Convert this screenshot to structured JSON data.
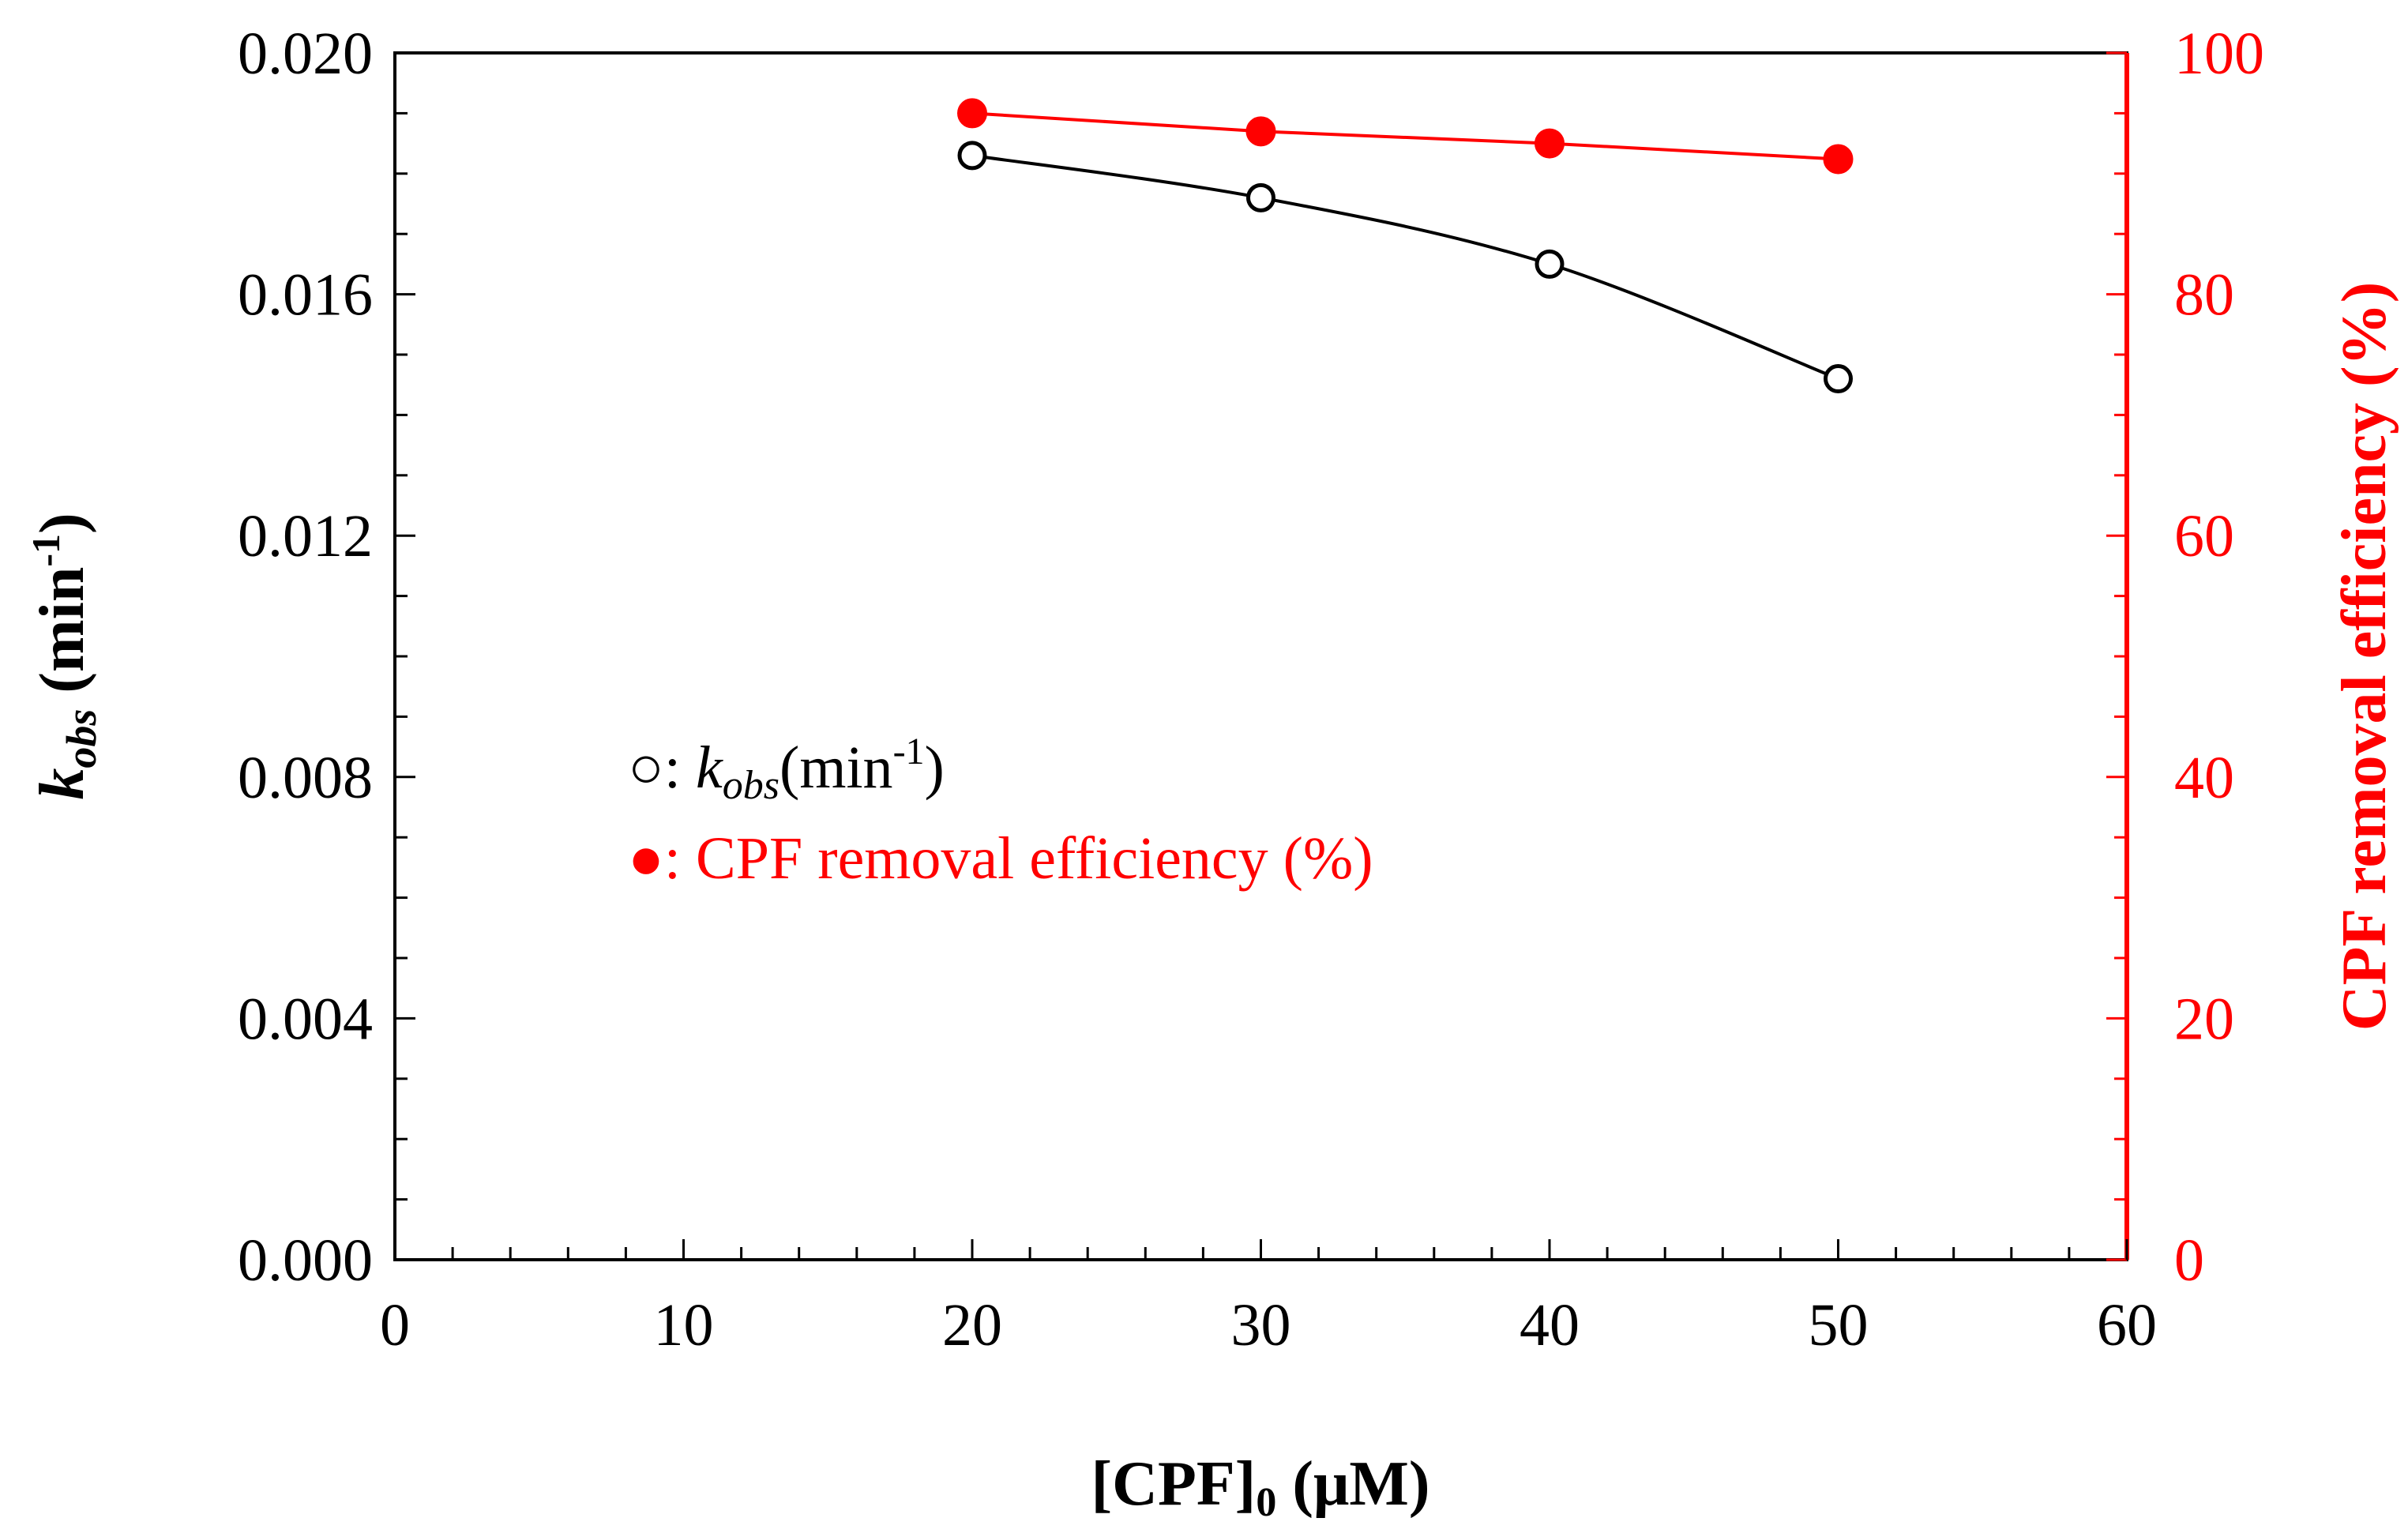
{
  "chart_data": {
    "type": "line",
    "x": [
      20,
      30,
      40,
      50
    ],
    "xlim": [
      0,
      60
    ],
    "xticks": [
      "0",
      "10",
      "20",
      "30",
      "40",
      "50",
      "60"
    ],
    "xlabel": {
      "main": "[CPF]",
      "sub": "0",
      "unit": " (μM)"
    },
    "ylim_left": [
      0,
      0.02
    ],
    "yticks_left": [
      "0.000",
      "0.004",
      "0.008",
      "0.012",
      "0.016",
      "0.020"
    ],
    "ylim_right": [
      0,
      100
    ],
    "yticks_right": [
      "0",
      "20",
      "40",
      "60",
      "80",
      "100"
    ],
    "ylabel_left": {
      "main": "k",
      "sub": "obs",
      "unit": " (min",
      "sup": "-1",
      "close": ")"
    },
    "ylabel_right": "CPF removal efficiency (%)",
    "series": [
      {
        "name": "kobs",
        "axis": "left",
        "marker": "open-circle",
        "color": "#000000",
        "values": [
          0.0183,
          0.0176,
          0.0165,
          0.0146
        ]
      },
      {
        "name": "CPF removal efficiency (%)",
        "axis": "right",
        "marker": "filled-circle",
        "color": "#ff0000",
        "values": [
          95.0,
          93.5,
          92.5,
          91.2
        ]
      }
    ],
    "legend": {
      "position": "center-left",
      "items": [
        {
          "symbol": "○",
          "sep": ": ",
          "k": "k",
          "sub": "obs",
          "unit": "(min",
          "sup": "-1",
          "close": ")",
          "color": "#000000"
        },
        {
          "symbol": "●",
          "sep": ": ",
          "text": "CPF removal efficiency (%)",
          "color": "#ff0000"
        }
      ]
    }
  }
}
